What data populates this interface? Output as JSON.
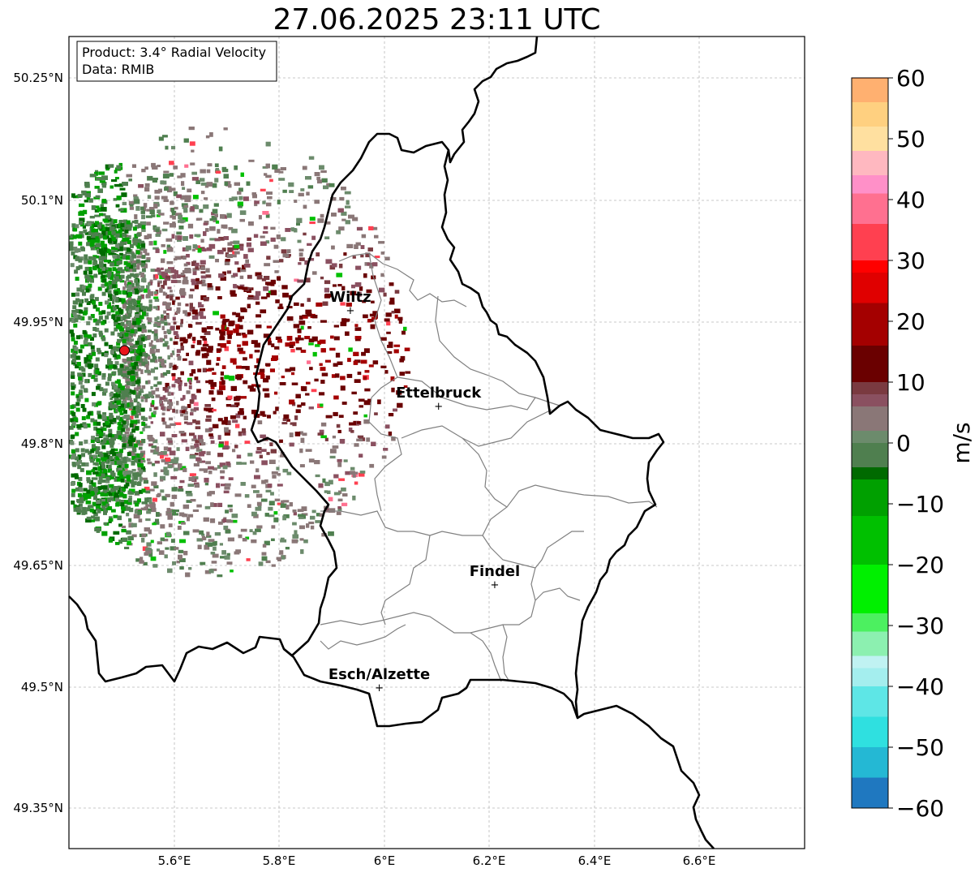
{
  "title": "27.06.2025 23:11 UTC",
  "info_box": {
    "product": "Product: 3.4° Radial Velocity",
    "data": "Data: RMIB"
  },
  "lat_ticks": [
    "50.25°N",
    "50.1°N",
    "49.95°N",
    "49.8°N",
    "49.65°N",
    "49.5°N",
    "49.35°N"
  ],
  "lon_ticks": [
    "5.6°E",
    "5.8°E",
    "6°E",
    "6.2°E",
    "6.4°E",
    "6.6°E"
  ],
  "cities": [
    {
      "name": "Wiltz",
      "lon": 5.935,
      "lat": 49.965
    },
    {
      "name": "Ettelbruck",
      "lon": 6.103,
      "lat": 49.847
    },
    {
      "name": "Findel",
      "lon": 6.21,
      "lat": 49.627
    },
    {
      "name": "Esch/Alzette",
      "lon": 5.99,
      "lat": 49.5
    }
  ],
  "radar_site": {
    "lon": 5.505,
    "lat": 49.915,
    "color": "#e8141c"
  },
  "colorbar": {
    "label": "m/s",
    "min": -60,
    "max": 60,
    "tick_labels": [
      "60",
      "50",
      "40",
      "30",
      "20",
      "10",
      "0",
      "−10",
      "−20",
      "−30",
      "−40",
      "−50",
      "−60"
    ],
    "stops": [
      {
        "v": -60,
        "color": "#1f78c0"
      },
      {
        "v": -55,
        "color": "#24b8d4"
      },
      {
        "v": -50,
        "color": "#2fe0e0"
      },
      {
        "v": -45,
        "color": "#5ee6e6"
      },
      {
        "v": -40,
        "color": "#a4eeee"
      },
      {
        "v": -37,
        "color": "#c0f2f2"
      },
      {
        "v": -35,
        "color": "#8cf0b0"
      },
      {
        "v": -31,
        "color": "#4cf060"
      },
      {
        "v": -28,
        "color": "#00f000"
      },
      {
        "v": -20,
        "color": "#00c000"
      },
      {
        "v": -12,
        "color": "#00a000"
      },
      {
        "v": -6,
        "color": "#006a00"
      },
      {
        "v": -4,
        "color": "#4f7f4f"
      },
      {
        "v": 0,
        "color": "#6c8b6c"
      },
      {
        "v": 2,
        "color": "#8a7777"
      },
      {
        "v": 6,
        "color": "#8a5060"
      },
      {
        "v": 8,
        "color": "#7a3a40"
      },
      {
        "v": 10,
        "color": "#6a0000"
      },
      {
        "v": 16,
        "color": "#a40000"
      },
      {
        "v": 23,
        "color": "#e00000"
      },
      {
        "v": 28,
        "color": "#ff0000"
      },
      {
        "v": 30,
        "color": "#ff4050"
      },
      {
        "v": 36,
        "color": "#ff7090"
      },
      {
        "v": 41,
        "color": "#ff90c8"
      },
      {
        "v": 44,
        "color": "#ffb8c0"
      },
      {
        "v": 48,
        "color": "#ffe0a0"
      },
      {
        "v": 52,
        "color": "#ffd080"
      },
      {
        "v": 56,
        "color": "#ffb070"
      },
      {
        "v": 60,
        "color": "#ff9050"
      }
    ]
  }
}
